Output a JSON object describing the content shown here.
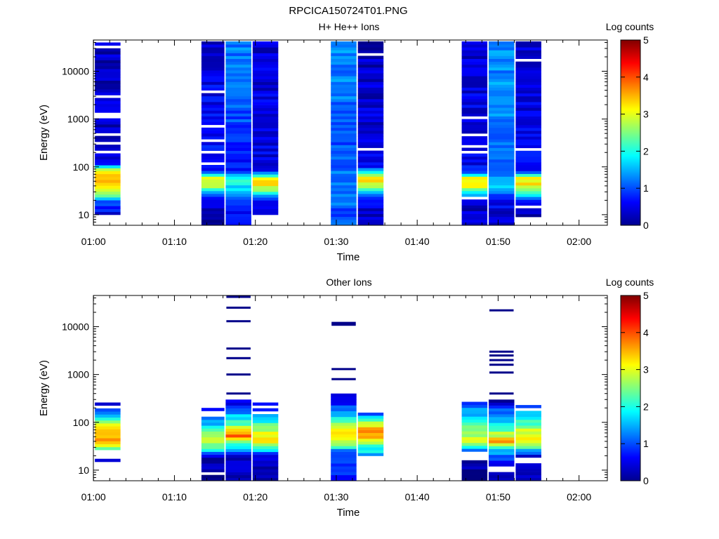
{
  "figure_title": "RPCICA150724T01.PNG",
  "chart_data": [
    {
      "type": "heatmap",
      "title": "H+ He++ Ions",
      "xlabel": "Time",
      "ylabel": "Energy (eV)",
      "x_tick_labels": [
        "01:00",
        "01:10",
        "01:20",
        "01:30",
        "01:40",
        "01:50",
        "02:00"
      ],
      "x_range": [
        "00:59:59",
        "02:03:30"
      ],
      "y_scale": "log",
      "ylim": [
        6,
        45000
      ],
      "y_tick_labels": [
        "10",
        "100",
        "1000",
        "10000"
      ],
      "colorbar": {
        "label": "Log counts",
        "range": [
          0,
          5
        ],
        "tick_labels": [
          "0",
          "1",
          "2",
          "3",
          "4",
          "5"
        ]
      },
      "columns": [
        {
          "start": "01:00:10",
          "end": "01:03:20",
          "emin": 10,
          "emax": 40000,
          "profile": [
            [
              10,
              0.5
            ],
            [
              20,
              1.2
            ],
            [
              30,
              3.0
            ],
            [
              50,
              3.7
            ],
            [
              70,
              3.4
            ],
            [
              90,
              2.6
            ],
            [
              120,
              0.4
            ],
            [
              40000,
              0.3
            ]
          ],
          "gaps": [
            200,
            300,
            500,
            1100,
            1300,
            2900,
            34000
          ]
        },
        {
          "start": "01:13:20",
          "end": "01:16:10",
          "emin": 6,
          "emax": 42000,
          "profile": [
            [
              6,
              0.2
            ],
            [
              20,
              0.4
            ],
            [
              28,
              1.3
            ],
            [
              40,
              2.8
            ],
            [
              60,
              3.0
            ],
            [
              80,
              0.8
            ],
            [
              40000,
              0.4
            ]
          ],
          "gaps": [
            120,
            200,
            350,
            700,
            3500
          ]
        },
        {
          "start": "01:16:20",
          "end": "01:19:30",
          "emin": 6,
          "emax": 42000,
          "profile": [
            [
              6,
              0.5
            ],
            [
              20,
              0.9
            ],
            [
              35,
              1.8
            ],
            [
              60,
              2.0
            ],
            [
              80,
              0.6
            ],
            [
              300,
              0.8
            ],
            [
              2000,
              1.1
            ],
            [
              40000,
              1.2
            ]
          ],
          "gaps": []
        },
        {
          "start": "01:19:40",
          "end": "01:22:50",
          "emin": 10,
          "emax": 42000,
          "profile": [
            [
              10,
              0.3
            ],
            [
              20,
              0.6
            ],
            [
              28,
              2.0
            ],
            [
              40,
              3.1
            ],
            [
              60,
              3.1
            ],
            [
              80,
              0.5
            ],
            [
              40000,
              0.4
            ]
          ],
          "gaps": []
        },
        {
          "start": "01:29:20",
          "end": "01:32:30",
          "emin": 6,
          "emax": 42000,
          "profile": [
            [
              6,
              1.0
            ],
            [
              60,
              1.2
            ],
            [
              300,
              1.0
            ],
            [
              3000,
              1.2
            ],
            [
              40000,
              1.3
            ]
          ],
          "gaps": []
        },
        {
          "start": "01:32:40",
          "end": "01:35:50",
          "emin": 6,
          "emax": 42000,
          "profile": [
            [
              6,
              0.3
            ],
            [
              20,
              0.5
            ],
            [
              30,
              1.6
            ],
            [
              45,
              3.0
            ],
            [
              60,
              3.4
            ],
            [
              80,
              2.0
            ],
            [
              100,
              0.5
            ],
            [
              40000,
              0.3
            ]
          ],
          "gaps": [
            250,
            22000
          ]
        },
        {
          "start": "01:45:30",
          "end": "01:48:40",
          "emin": 6,
          "emax": 42000,
          "profile": [
            [
              6,
              0.3
            ],
            [
              20,
              0.4
            ],
            [
              25,
              1.6
            ],
            [
              40,
              3.0
            ],
            [
              60,
              3.0
            ],
            [
              80,
              0.6
            ],
            [
              40000,
              0.4
            ]
          ],
          "gaps": [
            22,
            200,
            280,
            450,
            1100
          ]
        },
        {
          "start": "01:48:50",
          "end": "01:52:00",
          "emin": 6,
          "emax": 42000,
          "profile": [
            [
              6,
              0.3
            ],
            [
              20,
              0.6
            ],
            [
              35,
              1.6
            ],
            [
              60,
              1.4
            ],
            [
              100,
              1.1
            ],
            [
              1000,
              1.3
            ],
            [
              40000,
              1.3
            ]
          ],
          "gaps": []
        },
        {
          "start": "01:52:10",
          "end": "01:55:20",
          "emin": 9,
          "emax": 42000,
          "profile": [
            [
              9,
              0.2
            ],
            [
              20,
              0.5
            ],
            [
              28,
              2.0
            ],
            [
              40,
              3.2
            ],
            [
              60,
              3.2
            ],
            [
              80,
              0.6
            ],
            [
              40000,
              0.4
            ]
          ],
          "gaps": [
            14,
            230,
            18000
          ]
        }
      ]
    },
    {
      "type": "heatmap",
      "title": "Other Ions",
      "xlabel": "Time",
      "ylabel": "Energy (eV)",
      "x_tick_labels": [
        "01:00",
        "01:10",
        "01:20",
        "01:30",
        "01:40",
        "01:50",
        "02:00"
      ],
      "x_range": [
        "00:59:59",
        "02:03:30"
      ],
      "y_scale": "log",
      "ylim": [
        6,
        45000
      ],
      "y_tick_labels": [
        "10",
        "100",
        "1000",
        "10000"
      ],
      "colorbar": {
        "label": "Log counts",
        "range": [
          0,
          5
        ],
        "tick_labels": [
          "0",
          "1",
          "2",
          "3",
          "4",
          "5"
        ]
      },
      "columns": [
        {
          "start": "01:00:10",
          "end": "01:03:20",
          "emin": 15,
          "emax": 260,
          "profile": [
            [
              15,
              0.3
            ],
            [
              28,
              2.3
            ],
            [
              40,
              3.6
            ],
            [
              60,
              3.4
            ],
            [
              100,
              2.6
            ],
            [
              150,
              1.4
            ],
            [
              260,
              0.3
            ]
          ],
          "gaps": [
            18,
            20,
            22,
            24,
            26,
            220
          ]
        },
        {
          "start": "01:13:20",
          "end": "01:16:10",
          "emin": 6,
          "emax": 200,
          "profile": [
            [
              6,
              0.2
            ],
            [
              20,
              0.3
            ],
            [
              25,
              1.8
            ],
            [
              40,
              2.8
            ],
            [
              60,
              2.6
            ],
            [
              100,
              1.5
            ],
            [
              200,
              0.3
            ]
          ],
          "gaps": [
            9,
            150,
            170
          ]
        },
        {
          "start": "01:16:20",
          "end": "01:19:30",
          "emin": 6,
          "emax": 300,
          "profile": [
            [
              6,
              0.2
            ],
            [
              20,
              0.4
            ],
            [
              30,
              1.6
            ],
            [
              45,
              3.3
            ],
            [
              55,
              4.0
            ],
            [
              70,
              3.0
            ],
            [
              100,
              2.1
            ],
            [
              200,
              1.0
            ],
            [
              300,
              0.3
            ]
          ],
          "gaps": [],
          "lines": [
            400,
            1000,
            2200,
            3500,
            13000,
            25000,
            42000
          ]
        },
        {
          "start": "01:19:40",
          "end": "01:22:50",
          "emin": 6,
          "emax": 260,
          "profile": [
            [
              6,
              0.2
            ],
            [
              20,
              0.3
            ],
            [
              28,
              2.0
            ],
            [
              40,
              3.2
            ],
            [
              60,
              3.0
            ],
            [
              100,
              2.0
            ],
            [
              260,
              0.3
            ]
          ],
          "gaps": [
            150,
            200
          ]
        },
        {
          "start": "01:29:20",
          "end": "01:32:30",
          "emin": 6,
          "emax": 400,
          "profile": [
            [
              6,
              0.8
            ],
            [
              25,
              1.2
            ],
            [
              35,
              2.5
            ],
            [
              50,
              3.4
            ],
            [
              80,
              2.8
            ],
            [
              150,
              1.6
            ],
            [
              300,
              0.4
            ],
            [
              400,
              0.2
            ]
          ],
          "gaps": [],
          "lines": [
            800,
            1300,
            11000,
            12000
          ]
        },
        {
          "start": "01:32:40",
          "end": "01:35:50",
          "emin": 20,
          "emax": 160,
          "profile": [
            [
              20,
              1.5
            ],
            [
              30,
              2.0
            ],
            [
              50,
              3.6
            ],
            [
              70,
              3.8
            ],
            [
              100,
              2.7
            ],
            [
              160,
              0.6
            ]
          ],
          "gaps": []
        },
        {
          "start": "01:45:30",
          "end": "01:48:40",
          "emin": 6,
          "emax": 310,
          "profile": [
            [
              6,
              0.2
            ],
            [
              15,
              0.3
            ],
            [
              25,
              1.1
            ],
            [
              40,
              2.8
            ],
            [
              60,
              2.8
            ],
            [
              100,
              2.0
            ],
            [
              200,
              1.2
            ],
            [
              310,
              0.5
            ]
          ],
          "gaps": [
            17,
            20,
            22,
            24,
            270
          ]
        },
        {
          "start": "01:48:50",
          "end": "01:52:00",
          "emin": 6,
          "emax": 300,
          "profile": [
            [
              6,
              0.2
            ],
            [
              15,
              0.8
            ],
            [
              25,
              1.5
            ],
            [
              35,
              3.1
            ],
            [
              40,
              3.8
            ],
            [
              50,
              3.0
            ],
            [
              100,
              1.8
            ],
            [
              200,
              1.0
            ],
            [
              300,
              0.2
            ]
          ],
          "gaps": [
            10,
            12
          ],
          "lines": [
            400,
            1100,
            1600,
            2000,
            2500,
            3000,
            22000
          ]
        },
        {
          "start": "01:52:10",
          "end": "01:55:20",
          "emin": 6,
          "emax": 230,
          "profile": [
            [
              6,
              0.2
            ],
            [
              20,
              0.3
            ],
            [
              28,
              2.0
            ],
            [
              40,
              3.0
            ],
            [
              60,
              3.0
            ],
            [
              100,
              2.2
            ],
            [
              230,
              0.8
            ]
          ],
          "gaps": [
            16,
            18,
            190
          ]
        }
      ]
    }
  ]
}
